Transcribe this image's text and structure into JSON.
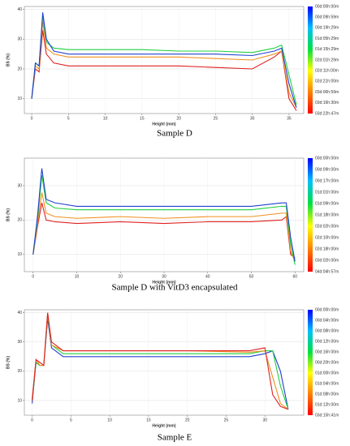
{
  "chart_data": [
    {
      "type": "line",
      "caption": "Sample D",
      "xlabel": "Height (mm)",
      "ylabel": "BS (%)",
      "x": [
        0,
        0.5,
        1,
        1.5,
        2,
        3,
        5,
        10,
        15,
        20,
        25,
        30,
        33,
        34,
        35,
        36
      ],
      "series": [
        {
          "color": "#e02020",
          "values": [
            10,
            20,
            19,
            33,
            25,
            22,
            21,
            21,
            21,
            21,
            20.5,
            20,
            24,
            26,
            10,
            6
          ]
        },
        {
          "color": "#f09020",
          "values": [
            10,
            21,
            20,
            36,
            27,
            25,
            24,
            24,
            24,
            24,
            23.5,
            23,
            25,
            26,
            12,
            7
          ]
        },
        {
          "color": "#20d040",
          "values": [
            10,
            22,
            21,
            38,
            29,
            27,
            26.5,
            26.5,
            26.5,
            26,
            26,
            25.5,
            27,
            28,
            18,
            8
          ]
        },
        {
          "color": "#2040d0",
          "values": [
            10,
            22,
            21,
            39,
            30,
            26,
            25,
            25,
            25,
            25,
            25,
            24.5,
            26,
            27,
            15,
            7
          ]
        }
      ],
      "xlim": [
        -1,
        37
      ],
      "xticks": [
        0,
        5,
        10,
        15,
        20,
        25,
        30,
        35
      ],
      "ylim": [
        5,
        41
      ],
      "yticks": [
        10,
        20,
        30,
        40
      ],
      "grid": true,
      "colorbar": {
        "colors": [
          "#0000ff",
          "#00c0ff",
          "#00e040",
          "#ffff00",
          "#ff8000",
          "#ff0000"
        ],
        "labels": [
          "00d:00h:00m",
          "00d:09h:59m",
          "00d:19h:29m",
          "01d:05h:29m",
          "01d:15h:29m",
          "02d:01h:29m",
          "02d:11h:00m",
          "02d:21h:00m",
          "03d:06h:59m",
          "03d:16h:30m",
          "03d:22h:47m"
        ]
      }
    },
    {
      "type": "line",
      "caption": "Sample D with VitD3 encapsulated",
      "xlabel": "Height (mm)",
      "ylabel": "BS (%)",
      "x": [
        0,
        1,
        2,
        3,
        5,
        10,
        20,
        30,
        40,
        50,
        57,
        58,
        59,
        60
      ],
      "series": [
        {
          "color": "#e02020",
          "values": [
            10,
            18,
            25,
            20,
            19.5,
            19,
            19.5,
            19,
            19.5,
            19.5,
            20,
            21,
            10,
            9
          ]
        },
        {
          "color": "#f09020",
          "values": [
            10,
            19,
            28,
            22,
            21,
            20.5,
            21,
            20.5,
            21,
            21,
            22,
            22,
            11,
            8
          ]
        },
        {
          "color": "#20d040",
          "values": [
            10,
            20,
            33,
            25,
            23.5,
            23,
            23,
            23,
            23,
            23,
            24,
            24,
            13,
            7
          ]
        },
        {
          "color": "#2040d0",
          "values": [
            10,
            21,
            35,
            26,
            25,
            24,
            24,
            24,
            24,
            24,
            25,
            25,
            15,
            8
          ]
        }
      ],
      "xlim": [
        -2,
        62
      ],
      "xticks": [
        0,
        10,
        20,
        30,
        40,
        50,
        60
      ],
      "ylim": [
        5,
        38
      ],
      "yticks": [
        10,
        20,
        30
      ],
      "grid": true,
      "colorbar": {
        "colors": [
          "#0000ff",
          "#00c0ff",
          "#00e040",
          "#ffff00",
          "#ff8000",
          "#ff0000"
        ],
        "labels": [
          "00d:00h:00m",
          "00d:09h:00m",
          "00d:17h:00m",
          "01d:01h:00m",
          "01d:09h:00m",
          "01d:18h:00m",
          "02d:02h:00m",
          "02d:10h:00m",
          "02d:18h:00m",
          "03d:02h:00m",
          "04d:04h:57m"
        ]
      }
    },
    {
      "type": "line",
      "caption": "Sample E",
      "xlabel": "Height (mm)",
      "ylabel": "BS (%)",
      "x": [
        0,
        0.5,
        1,
        1.5,
        2,
        2.5,
        4,
        10,
        20,
        28,
        30,
        31,
        32,
        33
      ],
      "series": [
        {
          "color": "#2040d0",
          "values": [
            9,
            23,
            22,
            22,
            38,
            28,
            25,
            25,
            25,
            25,
            26,
            27,
            20,
            7
          ]
        },
        {
          "color": "#20d040",
          "values": [
            10,
            23,
            22,
            22,
            39,
            29,
            26,
            26,
            26,
            26,
            27,
            27,
            15,
            7
          ]
        },
        {
          "color": "#f09020",
          "values": [
            10,
            24,
            22,
            22,
            40,
            29,
            27,
            27,
            27,
            26.5,
            27,
            18,
            9,
            7
          ]
        },
        {
          "color": "#e02020",
          "values": [
            10,
            24,
            23,
            22,
            40,
            30,
            27,
            27,
            27,
            27,
            28,
            12,
            8,
            7
          ]
        }
      ],
      "xlim": [
        -1,
        35
      ],
      "xticks": [
        0,
        5,
        10,
        15,
        20,
        25,
        30
      ],
      "ylim": [
        5,
        41
      ],
      "yticks": [
        10,
        20,
        30,
        40
      ],
      "grid": true,
      "colorbar": {
        "colors": [
          "#0000ff",
          "#00c0ff",
          "#00e040",
          "#ffff00",
          "#ff8000",
          "#ff0000"
        ],
        "labels": [
          "00d:00h:00m",
          "00d:04h:00m",
          "00d:08h:00m",
          "00d:12h:00m",
          "00d:16h:00m",
          "00d:20h:00m",
          "01d:00h:00m",
          "01d:04h:00m",
          "01d:08h:00m",
          "01d:12h:00m",
          "03d:15h:41m"
        ]
      }
    }
  ]
}
